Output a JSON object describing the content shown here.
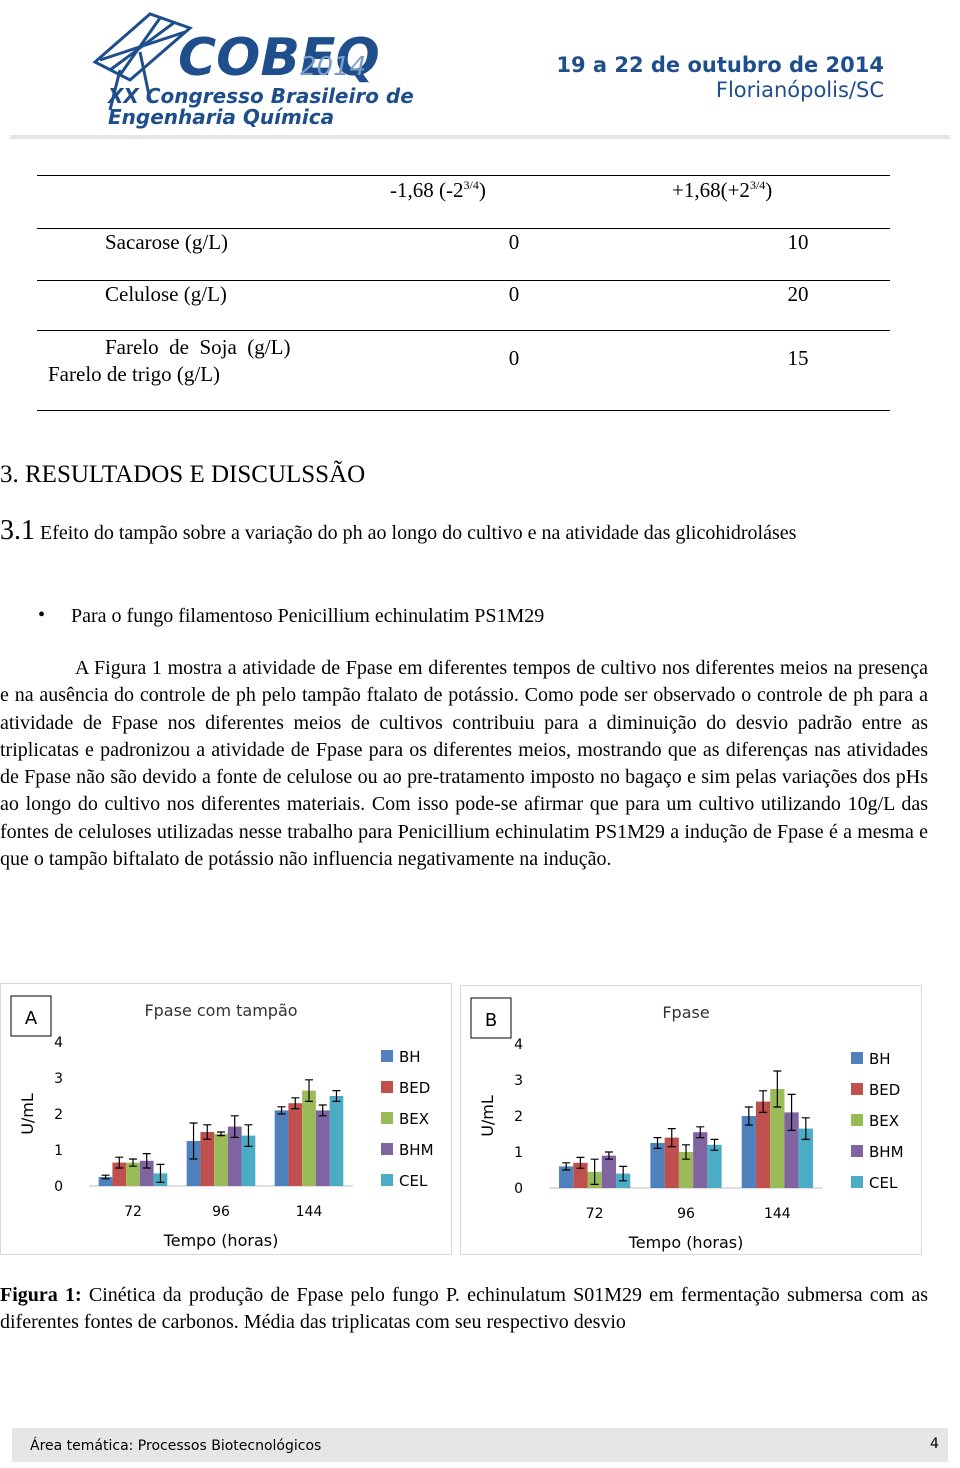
{
  "header": {
    "logo_main": "COBEQ",
    "logo_year": "2014",
    "logo_line1": "XX Congresso Brasileiro de",
    "logo_line2": "Engenharia Química",
    "date": "19 a 22 de outubro de 2014",
    "place": "Florianópolis/SC"
  },
  "table": {
    "header": [
      {
        "text": "-1,68 (-2",
        "sup": "3/4",
        "after": ")"
      },
      {
        "text": "+1,68(+2",
        "sup": "3/4",
        "after": ")"
      }
    ],
    "rows": [
      [
        [
          "Sacarose (g/L)"
        ],
        "0",
        "10"
      ],
      [
        [
          "Celulose (g/L)"
        ],
        "0",
        "20"
      ],
      [
        [
          "Farelo  de  Soja  (g/L)",
          "Farelo de trigo (g/L)"
        ],
        "0",
        "15"
      ]
    ]
  },
  "section_title": "3. RESULTADOS E DISCULSSÃO",
  "subsection": {
    "number": "3.1",
    "title": "Efeito do tampão sobre a variação do ph ao longo do cultivo e na atividade das glicohidroláses"
  },
  "bullet": "Para o fungo filamentoso Penicillium echinulatim PS1M29",
  "paragraph": "A Figura 1 mostra a atividade de Fpase em diferentes tempos de cultivo nos diferentes meios na presença e na ausência do controle de ph pelo tampão ftalato de potássio. Como pode ser observado o controle de ph para a atividade de Fpase nos diferentes meios de cultivos contribuiu para a diminuição do desvio padrão entre as triplicatas e padronizou a atividade de Fpase para os diferentes meios, mostrando que as diferenças nas atividades de Fpase não são devido a fonte de celulose ou ao pre-tratamento imposto no bagaço e sim pelas variações dos pHs ao longo do cultivo nos diferentes materiais. Com isso pode-se afirmar que para um cultivo utilizando 10g/L das fontes de celuloses utilizadas nesse trabalho para Penicillium echinulatim PS1M29 a indução de Fpase é a mesma e que o tampão biftalato de potássio não influencia negativamente na indução.",
  "chart_data": [
    {
      "type": "bar",
      "panel": "A",
      "title": "Fpase com tampão",
      "ylabel": "U/mL",
      "xlabel": "Tempo (horas)",
      "categories": [
        "72",
        "96",
        "144"
      ],
      "ylim": [
        0,
        4
      ],
      "yticks": [
        0,
        1,
        2,
        3,
        4
      ],
      "grid": false,
      "legend": "right",
      "series": [
        {
          "name": "BH",
          "color": "#4f81bd",
          "values": [
            0.25,
            1.25,
            2.1
          ],
          "errors": [
            0.05,
            0.5,
            0.1
          ]
        },
        {
          "name": "BED",
          "color": "#c0504d",
          "values": [
            0.65,
            1.5,
            2.3
          ],
          "errors": [
            0.15,
            0.2,
            0.15
          ]
        },
        {
          "name": "BEX",
          "color": "#9bbb59",
          "values": [
            0.65,
            1.45,
            2.65
          ],
          "errors": [
            0.1,
            0.05,
            0.3
          ]
        },
        {
          "name": "BHM",
          "color": "#8064a2",
          "values": [
            0.7,
            1.65,
            2.1
          ],
          "errors": [
            0.2,
            0.3,
            0.15
          ]
        },
        {
          "name": "CEL",
          "color": "#4bacc6",
          "values": [
            0.35,
            1.4,
            2.5
          ],
          "errors": [
            0.25,
            0.3,
            0.15
          ]
        }
      ]
    },
    {
      "type": "bar",
      "panel": "B",
      "title": "Fpase",
      "ylabel": "U/mL",
      "xlabel": "Tempo (horas)",
      "categories": [
        "72",
        "96",
        "144"
      ],
      "ylim": [
        0,
        4
      ],
      "yticks": [
        0,
        1,
        2,
        3,
        4
      ],
      "grid": false,
      "legend": "right",
      "series": [
        {
          "name": "BH",
          "color": "#4f81bd",
          "values": [
            0.6,
            1.25,
            2.0
          ],
          "errors": [
            0.1,
            0.15,
            0.25
          ]
        },
        {
          "name": "BED",
          "color": "#c0504d",
          "values": [
            0.7,
            1.4,
            2.4
          ],
          "errors": [
            0.15,
            0.25,
            0.3
          ]
        },
        {
          "name": "BEX",
          "color": "#9bbb59",
          "values": [
            0.45,
            1.0,
            2.75
          ],
          "errors": [
            0.35,
            0.2,
            0.5
          ]
        },
        {
          "name": "BHM",
          "color": "#8064a2",
          "values": [
            0.9,
            1.55,
            2.1
          ],
          "errors": [
            0.1,
            0.15,
            0.5
          ]
        },
        {
          "name": "CEL",
          "color": "#4bacc6",
          "values": [
            0.4,
            1.2,
            1.65
          ],
          "errors": [
            0.2,
            0.15,
            0.3
          ]
        }
      ]
    }
  ],
  "caption": {
    "label": "Figura 1:",
    "text": "Cinética da produção de Fpase pelo fungo P. echinulatum S01M29 em fermentação submersa com as diferentes fontes de carbonos. Média das triplicatas com seu respectivo desvio"
  },
  "footer": {
    "area": "Área temática: Processos Biotecnológicos",
    "page": "4"
  }
}
